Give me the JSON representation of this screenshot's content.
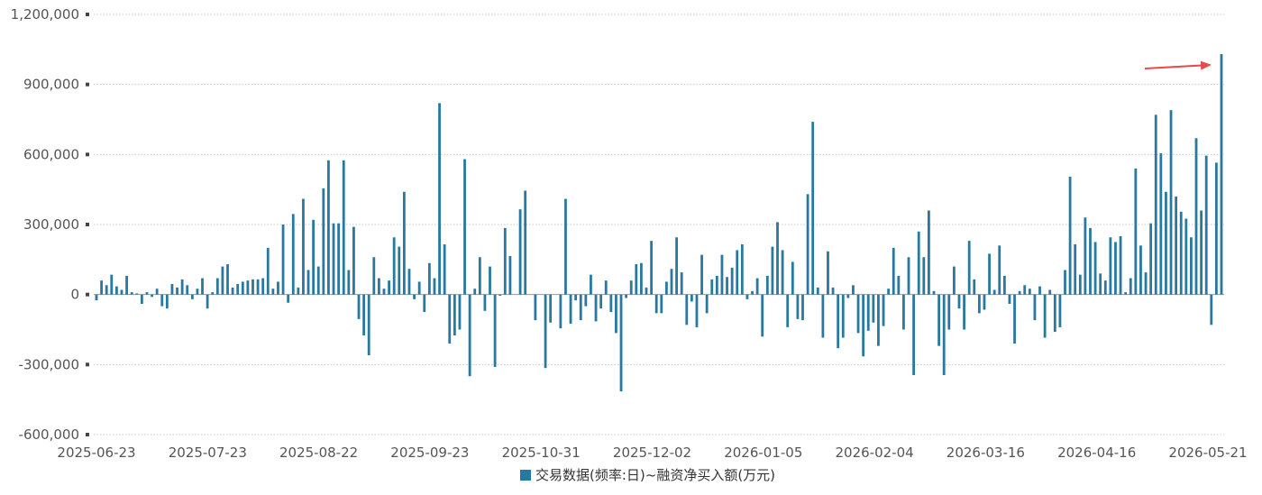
{
  "chart_data": {
    "type": "bar",
    "title": "",
    "xlabel": "",
    "ylabel": "",
    "ylim": [
      -600000,
      1200000
    ],
    "yticks": [
      1200000,
      900000,
      600000,
      300000,
      0,
      -300000,
      -600000
    ],
    "ytick_labels": [
      "1,200,000",
      "900,000",
      "600,000",
      "300,000",
      "0",
      "-300,000",
      "-600,000"
    ],
    "xtick_labels": [
      "2025-06-23",
      "2025-07-23",
      "2025-08-22",
      "2025-09-23",
      "2025-10-31",
      "2025-12-02",
      "2026-01-05",
      "2026-02-04",
      "2026-03-16",
      "2026-04-16",
      "2026-05-21"
    ],
    "grid": true,
    "legend_position": "bottom-center",
    "series": [
      {
        "name": "交易数据(频率:日)~融资净买入额(万元)",
        "color": "#2878a0",
        "values": [
          -25000,
          60000,
          40000,
          85000,
          35000,
          20000,
          80000,
          10000,
          5000,
          -40000,
          10000,
          -10000,
          25000,
          -50000,
          -60000,
          45000,
          30000,
          65000,
          40000,
          -20000,
          25000,
          70000,
          -60000,
          10000,
          70000,
          120000,
          130000,
          30000,
          45000,
          55000,
          60000,
          65000,
          65000,
          70000,
          200000,
          25000,
          55000,
          300000,
          -35000,
          345000,
          30000,
          410000,
          105000,
          320000,
          120000,
          455000,
          575000,
          305000,
          305000,
          575000,
          105000,
          290000,
          -105000,
          -175000,
          -260000,
          160000,
          70000,
          25000,
          60000,
          245000,
          205000,
          440000,
          110000,
          -20000,
          55000,
          -75000,
          135000,
          70000,
          820000,
          215000,
          -210000,
          -175000,
          -150000,
          580000,
          -350000,
          25000,
          160000,
          -70000,
          120000,
          -310000,
          -5000,
          285000,
          165000,
          0,
          365000,
          445000,
          0,
          -110000,
          0,
          -315000,
          -120000,
          0,
          -145000,
          410000,
          -125000,
          -25000,
          -110000,
          -50000,
          85000,
          -115000,
          -60000,
          60000,
          -75000,
          -165000,
          -415000,
          -15000,
          60000,
          130000,
          135000,
          30000,
          230000,
          -80000,
          -80000,
          55000,
          110000,
          245000,
          95000,
          -130000,
          -30000,
          -140000,
          170000,
          -80000,
          65000,
          80000,
          170000,
          75000,
          115000,
          190000,
          215000,
          -20000,
          15000,
          70000,
          -180000,
          80000,
          205000,
          310000,
          190000,
          -140000,
          140000,
          -105000,
          -110000,
          430000,
          740000,
          30000,
          -185000,
          185000,
          30000,
          -230000,
          -185000,
          -15000,
          40000,
          -165000,
          -265000,
          -155000,
          -120000,
          -220000,
          -135000,
          25000,
          200000,
          80000,
          -150000,
          160000,
          -345000,
          270000,
          160000,
          360000,
          15000,
          -220000,
          -345000,
          -150000,
          120000,
          -60000,
          -150000,
          230000,
          65000,
          -80000,
          -65000,
          175000,
          20000,
          210000,
          80000,
          -40000,
          -210000,
          15000,
          40000,
          25000,
          -110000,
          35000,
          -185000,
          20000,
          -160000,
          -140000,
          105000,
          505000,
          215000,
          85000,
          330000,
          285000,
          225000,
          90000,
          60000,
          245000,
          225000,
          250000,
          10000,
          70000,
          540000,
          210000,
          95000,
          305000,
          770000,
          605000,
          440000,
          790000,
          420000,
          355000,
          325000,
          245000,
          670000,
          360000,
          595000,
          -130000,
          565000,
          1030000
        ]
      }
    ],
    "annotation": {
      "type": "arrow",
      "color": "#e8494a",
      "points_to": "latest bar"
    }
  }
}
